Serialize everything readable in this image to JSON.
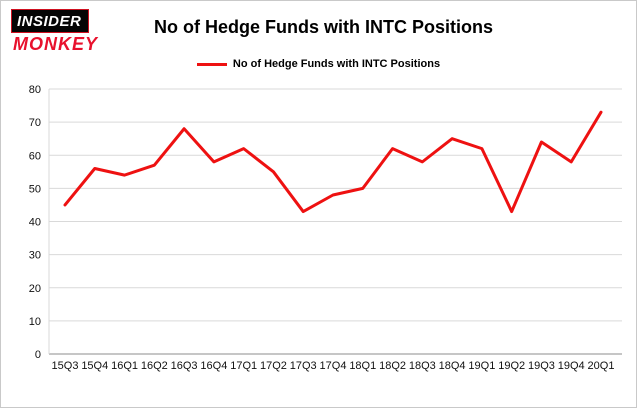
{
  "logo": {
    "line1": "INSIDER",
    "line2": "MONKEY"
  },
  "title": "No of Hedge Funds with INTC Positions",
  "legend": {
    "label": "No of Hedge Funds with INTC Positions"
  },
  "colors": {
    "series_red": "#ee1111",
    "gridline": "#d9d9d9",
    "axis": "#8c8c8c",
    "tick_text": "#111111"
  },
  "chart_data": {
    "type": "line",
    "title": "No of Hedge Funds with INTC Positions",
    "series_name": "No of Hedge Funds with INTC Positions",
    "categories": [
      "15Q3",
      "15Q4",
      "16Q1",
      "16Q2",
      "16Q3",
      "16Q4",
      "17Q1",
      "17Q2",
      "17Q3",
      "17Q4",
      "18Q1",
      "18Q2",
      "18Q3",
      "18Q4",
      "19Q1",
      "19Q2",
      "19Q3",
      "19Q4",
      "20Q1"
    ],
    "values": [
      45,
      56,
      54,
      57,
      68,
      58,
      62,
      55,
      43,
      48,
      50,
      62,
      58,
      65,
      62,
      43,
      64,
      58,
      73
    ],
    "ylim": [
      0,
      80
    ],
    "yticks": [
      0,
      10,
      20,
      30,
      40,
      50,
      60,
      70,
      80
    ],
    "line_color": "#ee1111",
    "grid": "horizontal",
    "legend_position": "top-center",
    "xlabel": "",
    "ylabel": ""
  }
}
